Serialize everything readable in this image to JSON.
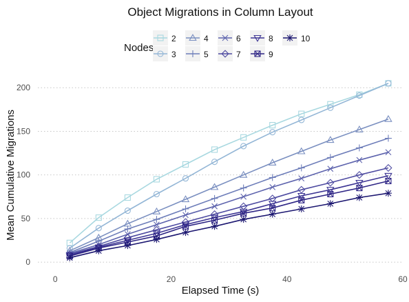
{
  "chart_data": {
    "type": "line",
    "title": "Object Migrations in Column Layout",
    "xlabel": "Elapsed Time (s)",
    "ylabel": "Mean Cumulative Migrations",
    "xlim": [
      -3,
      60
    ],
    "ylim": [
      -7,
      212
    ],
    "xticks": [
      0,
      20,
      40,
      60
    ],
    "yticks": [
      0,
      50,
      100,
      150,
      200
    ],
    "grid": "horizontal-dotted",
    "legend": {
      "title": "Nodes",
      "placement": "top"
    },
    "x": [
      2.5,
      7.5,
      12.5,
      17.5,
      22.5,
      27.5,
      32.5,
      37.5,
      42.5,
      47.5,
      52.5,
      57.5
    ],
    "series": [
      {
        "name": "2",
        "color": "#a8d8e0",
        "marker": "square",
        "values": [
          22,
          51,
          74,
          95,
          112,
          129,
          143,
          157,
          170,
          181,
          192,
          205
        ]
      },
      {
        "name": "3",
        "color": "#93b6d6",
        "marker": "circle",
        "values": [
          16,
          39,
          59,
          78,
          96,
          115,
          133,
          149,
          163,
          177,
          191,
          205
        ]
      },
      {
        "name": "4",
        "color": "#7a8fc0",
        "marker": "triangle-up",
        "values": [
          13,
          28,
          44,
          58,
          72,
          86,
          100,
          114,
          127,
          140,
          152,
          164
        ]
      },
      {
        "name": "5",
        "color": "#6d7db9",
        "marker": "plus",
        "values": [
          11,
          24,
          38,
          49,
          61,
          73,
          85,
          97,
          108,
          120,
          131,
          142
        ]
      },
      {
        "name": "6",
        "color": "#5d63ad",
        "marker": "x",
        "values": [
          10,
          20,
          32,
          43,
          54,
          64,
          75,
          86,
          96,
          107,
          117,
          126
        ]
      },
      {
        "name": "7",
        "color": "#4e4ba1",
        "marker": "diamond",
        "values": [
          9,
          18,
          28,
          37,
          46,
          55,
          64,
          73,
          83,
          91,
          100,
          108
        ]
      },
      {
        "name": "8",
        "color": "#3d3594",
        "marker": "triangle-down",
        "values": [
          8,
          17,
          25,
          33,
          43,
          51,
          58,
          67,
          76,
          83,
          91,
          99
        ]
      },
      {
        "name": "9",
        "color": "#2e2585",
        "marker": "square-x",
        "values": [
          7,
          16,
          23,
          30,
          41,
          48,
          56,
          62,
          71,
          78,
          85,
          93
        ]
      },
      {
        "name": "10",
        "color": "#1b1670",
        "marker": "star",
        "values": [
          5,
          13,
          19,
          26,
          34,
          41,
          49,
          55,
          61,
          67,
          74,
          79
        ]
      }
    ]
  }
}
